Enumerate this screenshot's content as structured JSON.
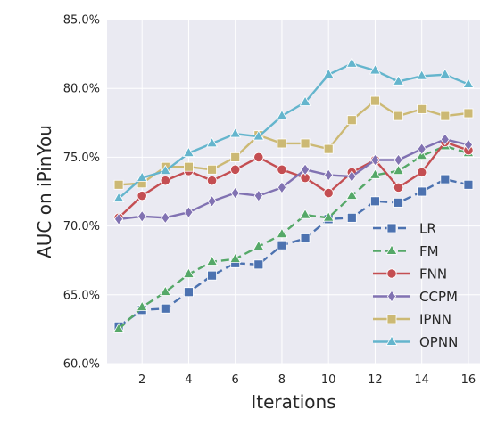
{
  "chart_data": {
    "type": "line",
    "xlabel": "Iterations",
    "ylabel": "AUC on iPinYou",
    "xlim": [
      0.5,
      16.5
    ],
    "ylim": [
      60.0,
      85.0
    ],
    "xticks": [
      2,
      4,
      6,
      8,
      10,
      12,
      14,
      16
    ],
    "xtick_labels": [
      "2",
      "4",
      "6",
      "8",
      "10",
      "12",
      "14",
      "16"
    ],
    "yticks": [
      60,
      65,
      70,
      75,
      80,
      85
    ],
    "ytick_labels": [
      "60.0%",
      "65.0%",
      "70.0%",
      "75.0%",
      "80.0%",
      "85.0%"
    ],
    "grid": true,
    "legend_position": "lower-right",
    "x": [
      1,
      2,
      3,
      4,
      5,
      6,
      7,
      8,
      9,
      10,
      11,
      12,
      13,
      14,
      15,
      16
    ],
    "series": [
      {
        "name": "LR",
        "color": "#4c72b0",
        "marker": "square",
        "dashed": true,
        "values": [
          62.7,
          63.9,
          64.0,
          65.2,
          66.4,
          67.3,
          67.2,
          68.6,
          69.1,
          70.5,
          70.6,
          71.8,
          71.7,
          72.5,
          73.4,
          73.0
        ]
      },
      {
        "name": "FM",
        "color": "#55a868",
        "marker": "triangle",
        "dashed": true,
        "values": [
          62.5,
          64.1,
          65.2,
          66.5,
          67.4,
          67.6,
          68.5,
          69.4,
          70.8,
          70.6,
          72.2,
          73.7,
          74.0,
          75.1,
          75.8,
          75.3
        ]
      },
      {
        "name": "FNN",
        "color": "#c44e52",
        "marker": "circle",
        "dashed": false,
        "values": [
          70.6,
          72.2,
          73.3,
          74.0,
          73.3,
          74.1,
          75.0,
          74.1,
          73.5,
          72.4,
          73.9,
          74.8,
          72.8,
          73.9,
          76.1,
          75.5
        ]
      },
      {
        "name": "CCPM",
        "color": "#8172b2",
        "marker": "diamond",
        "dashed": false,
        "values": [
          70.5,
          70.7,
          70.6,
          71.0,
          71.8,
          72.4,
          72.2,
          72.8,
          74.1,
          73.7,
          73.6,
          74.8,
          74.8,
          75.6,
          76.3,
          75.9
        ]
      },
      {
        "name": "IPNN",
        "color": "#ccb974",
        "marker": "square",
        "dashed": false,
        "values": [
          73.0,
          73.1,
          74.3,
          74.3,
          74.1,
          75.0,
          76.6,
          76.0,
          76.0,
          75.6,
          77.7,
          79.1,
          78.0,
          78.5,
          78.0,
          78.2
        ]
      },
      {
        "name": "OPNN",
        "color": "#64b5cd",
        "marker": "triangle",
        "dashed": false,
        "values": [
          72.0,
          73.5,
          74.0,
          75.3,
          76.0,
          76.7,
          76.5,
          78.0,
          79.0,
          81.0,
          81.8,
          81.3,
          80.5,
          80.9,
          81.0,
          80.3
        ]
      }
    ]
  }
}
